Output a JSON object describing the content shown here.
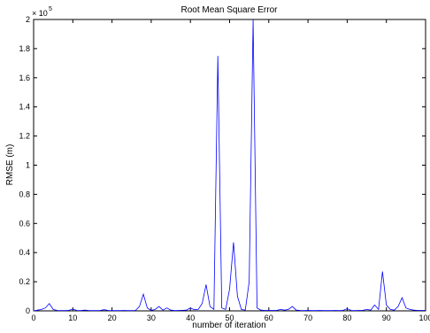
{
  "chart_data": {
    "type": "line",
    "title": "Root Mean Square Error",
    "xlabel": "number of iteration",
    "ylabel": "RMSE (m)",
    "y_multiplier": "× 10",
    "y_multiplier_exp": "5",
    "xlim": [
      0,
      100
    ],
    "ylim": [
      0,
      2
    ],
    "xticks": [
      0,
      10,
      20,
      30,
      40,
      50,
      60,
      70,
      80,
      90,
      100
    ],
    "yticks": [
      0,
      0.2,
      0.4,
      0.6,
      0.8,
      1,
      1.2,
      1.4,
      1.6,
      1.8,
      2
    ],
    "grid": false,
    "line_color": "#0000ff",
    "series": [
      {
        "x": [
          0,
          1,
          2,
          3,
          4,
          5,
          6,
          7,
          8,
          9,
          10,
          11,
          12,
          13,
          14,
          15,
          16,
          17,
          18,
          19,
          20,
          21,
          22,
          23,
          24,
          25,
          26,
          27,
          28,
          29,
          30,
          31,
          32,
          33,
          34,
          35,
          36,
          37,
          38,
          39,
          40,
          41,
          42,
          43,
          44,
          45,
          46,
          47,
          48,
          49,
          50,
          51,
          52,
          53,
          54,
          55,
          56,
          57,
          58,
          59,
          60,
          61,
          62,
          63,
          64,
          65,
          66,
          67,
          68,
          69,
          70,
          71,
          72,
          73,
          74,
          75,
          76,
          77,
          78,
          79,
          80,
          81,
          82,
          83,
          84,
          85,
          86,
          87,
          88,
          89,
          90,
          91,
          92,
          93,
          94,
          95,
          96,
          97,
          98,
          99,
          100
        ],
        "y": [
          0,
          0.005,
          0.01,
          0.02,
          0.05,
          0.01,
          0.003,
          0.002,
          0.002,
          0.004,
          0.012,
          0.003,
          0.002,
          0.005,
          0.003,
          0.002,
          0.002,
          0.003,
          0.008,
          0.003,
          0.002,
          0.002,
          0.002,
          0.003,
          0.002,
          0.002,
          0.003,
          0.03,
          0.115,
          0.02,
          0.003,
          0.01,
          0.03,
          0.005,
          0.02,
          0.005,
          0.002,
          0.003,
          0.004,
          0.005,
          0.02,
          0.008,
          0.01,
          0.05,
          0.18,
          0.03,
          0.01,
          1.75,
          0.02,
          0.01,
          0.15,
          0.47,
          0.1,
          0.01,
          0.005,
          0.2,
          2.0,
          0.02,
          0.005,
          0.003,
          0.003,
          0.003,
          0.003,
          0.01,
          0.005,
          0.01,
          0.03,
          0.005,
          0.003,
          0.002,
          0.003,
          0.002,
          0.002,
          0.003,
          0.002,
          0.002,
          0.002,
          0.003,
          0.002,
          0.004,
          0.015,
          0.003,
          0.002,
          0.003,
          0.004,
          0.01,
          0.005,
          0.04,
          0.01,
          0.27,
          0.04,
          0.01,
          0.005,
          0.03,
          0.09,
          0.02,
          0.01,
          0.005,
          0.003,
          0.003,
          0.003
        ]
      }
    ]
  }
}
